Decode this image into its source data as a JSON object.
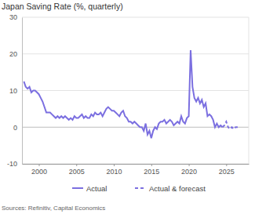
{
  "chart_data": {
    "type": "line",
    "title": "Japan Saving Rate (%, quarterly)",
    "source": "Sources: Refinitiv, Capital Economics",
    "x": [
      1998,
      1998.25,
      1998.5,
      1998.75,
      1999,
      1999.25,
      1999.5,
      1999.75,
      2000,
      2000.25,
      2000.5,
      2000.75,
      2001,
      2001.25,
      2001.5,
      2001.75,
      2002,
      2002.25,
      2002.5,
      2002.75,
      2003,
      2003.25,
      2003.5,
      2003.75,
      2004,
      2004.25,
      2004.5,
      2004.75,
      2005,
      2005.25,
      2005.5,
      2005.75,
      2006,
      2006.25,
      2006.5,
      2006.75,
      2007,
      2007.25,
      2007.5,
      2007.75,
      2008,
      2008.25,
      2008.5,
      2008.75,
      2009,
      2009.25,
      2009.5,
      2009.75,
      2010,
      2010.25,
      2010.5,
      2010.75,
      2011,
      2011.25,
      2011.5,
      2011.75,
      2012,
      2012.25,
      2012.5,
      2012.75,
      2013,
      2013.25,
      2013.5,
      2013.75,
      2014,
      2014.25,
      2014.5,
      2014.75,
      2015,
      2015.25,
      2015.5,
      2015.75,
      2016,
      2016.25,
      2016.5,
      2016.75,
      2017,
      2017.25,
      2017.5,
      2017.75,
      2018,
      2018.25,
      2018.5,
      2018.75,
      2019,
      2019.25,
      2019.5,
      2019.75,
      2020,
      2020.25,
      2020.5,
      2020.75,
      2021,
      2021.25,
      2021.5,
      2021.75,
      2022,
      2022.25,
      2022.5,
      2022.75,
      2023,
      2023.25,
      2023.5,
      2023.75,
      2024,
      2024.25,
      2024.5,
      2024.75,
      2025,
      2025.25,
      2025.5,
      2025.75,
      2026,
      2026.25,
      2026.5,
      2026.75
    ],
    "series": [
      {
        "name": "Actual",
        "color": "#7b6fe0",
        "line_style": "solid",
        "values": [
          12.5,
          11,
          10.5,
          11,
          9.5,
          10,
          10,
          9.5,
          9,
          8,
          7,
          5.5,
          4,
          4,
          4,
          3.5,
          3,
          2.5,
          3,
          2.5,
          3,
          2.5,
          3,
          2.5,
          2,
          2.5,
          2,
          3,
          2.5,
          2.5,
          3,
          3.5,
          2.5,
          3,
          2.5,
          2.5,
          3.5,
          3,
          4,
          3.5,
          3.5,
          4,
          3,
          4,
          5,
          5.5,
          5,
          4.5,
          4.5,
          4,
          3.5,
          3,
          4,
          4.5,
          3,
          2.5,
          1.5,
          1.5,
          1,
          1.5,
          1,
          0.5,
          0,
          0,
          -1,
          1,
          -2,
          -1,
          -3,
          -1,
          0,
          -0.5,
          1,
          1.5,
          1.5,
          2,
          1,
          1.5,
          2,
          1.5,
          0.5,
          1,
          1.5,
          1,
          3,
          1.5,
          1,
          2.5,
          3,
          21,
          11,
          8,
          7,
          8,
          6.5,
          7.5,
          5.5,
          6.5,
          3,
          3.5,
          3,
          2,
          0,
          1,
          0,
          0.5,
          0,
          null,
          null,
          null,
          null,
          null,
          null,
          null,
          null,
          null
        ]
      },
      {
        "name": "Actual & forecast",
        "color": "#7b6fe0",
        "line_style": "dashed",
        "values": [
          null,
          null,
          null,
          null,
          null,
          null,
          null,
          null,
          null,
          null,
          null,
          null,
          null,
          null,
          null,
          null,
          null,
          null,
          null,
          null,
          null,
          null,
          null,
          null,
          null,
          null,
          null,
          null,
          null,
          null,
          null,
          null,
          null,
          null,
          null,
          null,
          null,
          null,
          null,
          null,
          null,
          null,
          null,
          null,
          null,
          null,
          null,
          null,
          null,
          null,
          null,
          null,
          null,
          null,
          null,
          null,
          null,
          null,
          null,
          null,
          null,
          null,
          null,
          null,
          null,
          null,
          null,
          null,
          null,
          null,
          null,
          null,
          null,
          null,
          null,
          null,
          null,
          null,
          null,
          null,
          null,
          null,
          null,
          null,
          null,
          null,
          null,
          null,
          null,
          null,
          null,
          null,
          null,
          null,
          null,
          null,
          null,
          null,
          null,
          null,
          null,
          null,
          null,
          null,
          null,
          null,
          0,
          0.5,
          1.5,
          0,
          -0.5,
          0,
          -0.5,
          0,
          0,
          0
        ]
      }
    ],
    "xlim": [
      1997.75,
      2028
    ],
    "xticks": [
      2000,
      2005,
      2010,
      2015,
      2020,
      2025
    ],
    "ylim": [
      -10,
      30
    ],
    "yticks": [
      -10,
      0,
      10,
      20,
      30
    ],
    "grid": true,
    "legend": "bottom"
  }
}
